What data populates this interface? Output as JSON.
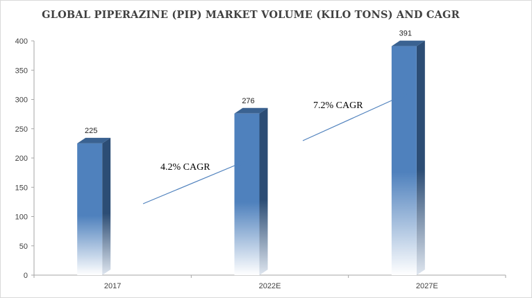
{
  "chart_data": {
    "type": "bar",
    "title": "GLOBAL PIPERAZINE (PIP) MARKET VOLUME (KILO TONS) AND CAGR",
    "xlabel": "",
    "ylabel": "",
    "categories": [
      "2017",
      "2022E",
      "2027E"
    ],
    "values": [
      225,
      276,
      391
    ],
    "data_labels": [
      "225",
      "276",
      "391"
    ],
    "ylim": [
      0,
      400
    ],
    "yticks": [
      "0",
      "50",
      "100",
      "150",
      "200",
      "250",
      "300",
      "350",
      "400"
    ],
    "grid": false,
    "legend": "none",
    "bar_color": "#4f81bd",
    "bar_side_color": "#2c4d75",
    "bar_top_color": "#3a6291",
    "annotations": [
      {
        "text": "4.2% CAGR",
        "from": 0,
        "to": 1
      },
      {
        "text": "7.2% CAGR",
        "from": 1,
        "to": 2
      }
    ]
  }
}
